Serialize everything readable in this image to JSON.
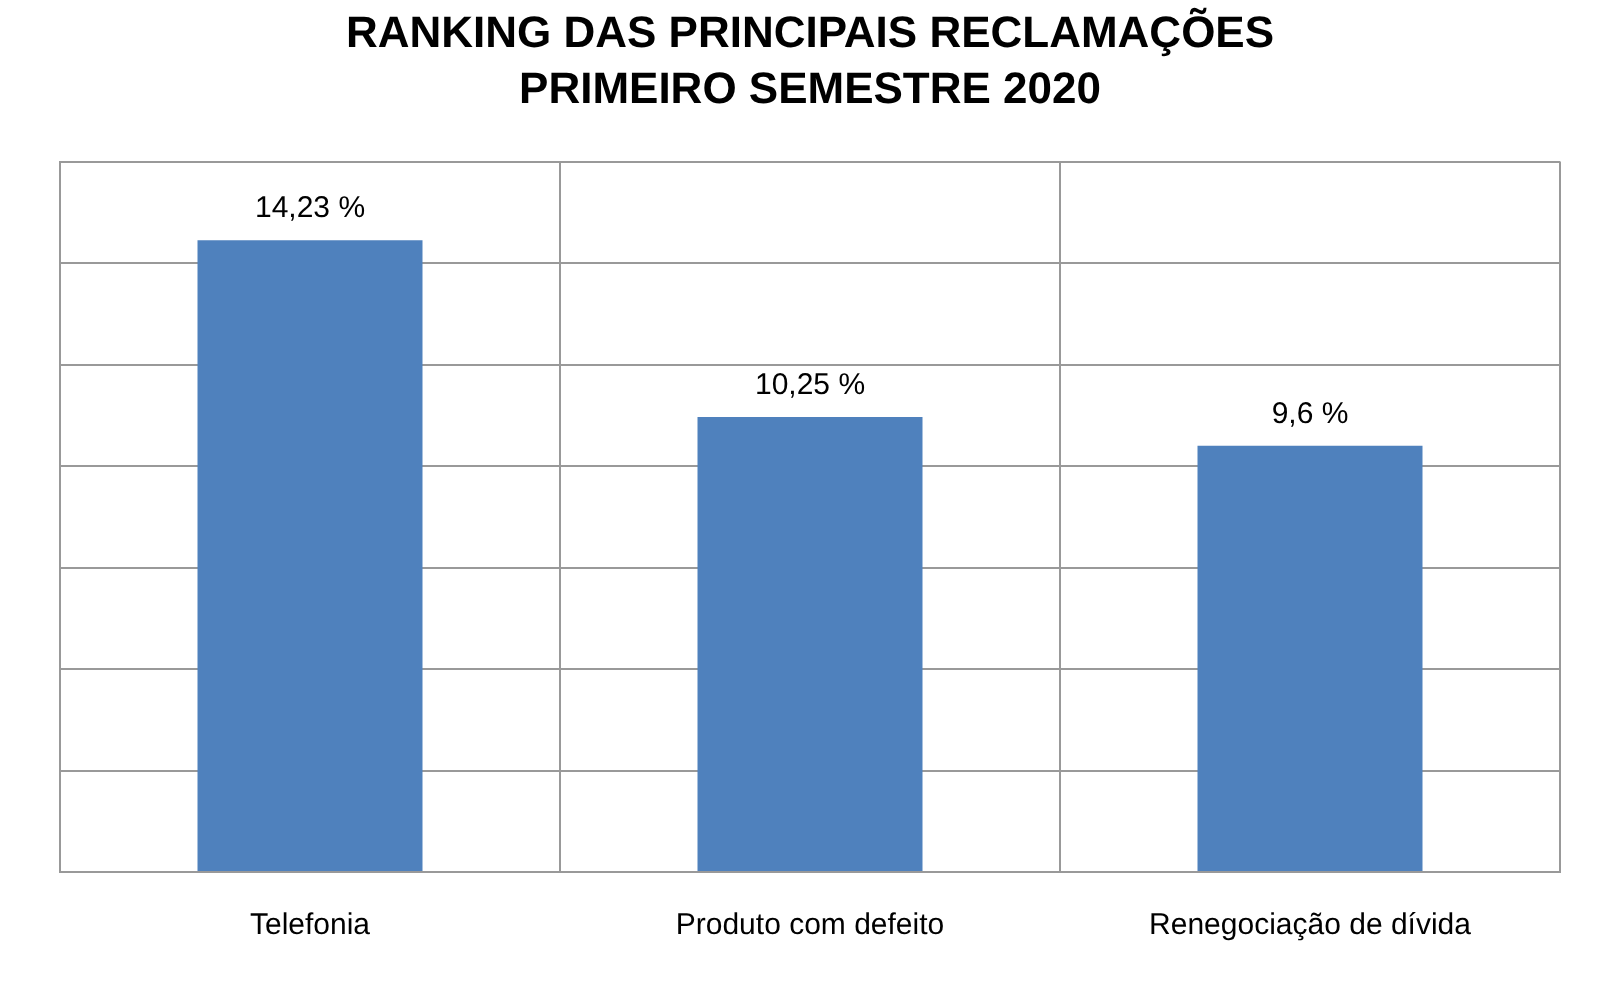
{
  "chart_data": {
    "type": "bar",
    "title": "RANKING DAS PRINCIPAIS RECLAMAÇÕES",
    "subtitle": "PRIMEIRO SEMESTRE 2020",
    "categories": [
      "Telefonia",
      "Produto com defeito",
      "Renegociação de dívida"
    ],
    "values": [
      14.23,
      10.25,
      9.6
    ],
    "value_labels": [
      "14,23 %",
      "10,25 %",
      "9,6 %"
    ],
    "color": "#4f81bd",
    "grid": true,
    "legend": false,
    "tick_labels": "x"
  }
}
